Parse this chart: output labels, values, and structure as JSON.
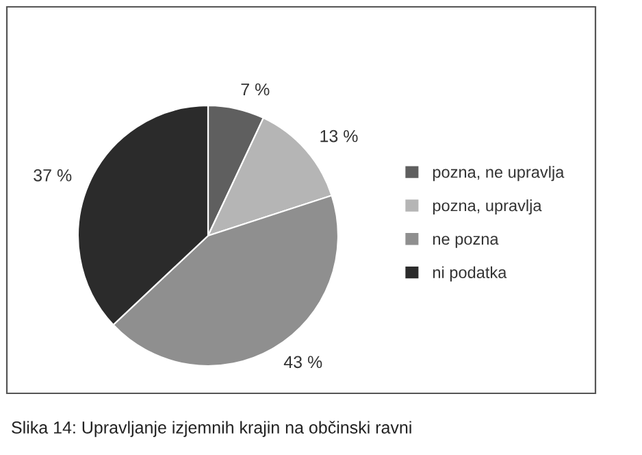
{
  "chart_data": {
    "type": "pie",
    "categories": [
      "pozna, ne upravlja",
      "pozna, upravlja",
      "ne pozna",
      "ni podatka"
    ],
    "values": [
      7,
      13,
      43,
      37
    ],
    "value_labels": [
      "7 %",
      "13 %",
      "43 %",
      "37 %"
    ],
    "colors": [
      "#5f5f5f",
      "#b5b5b5",
      "#8f8f8f",
      "#2b2b2b"
    ],
    "legend": "right",
    "annotations": [
      "Slika 14: Upravljanje izjemnih krajin na občinski ravni"
    ]
  }
}
